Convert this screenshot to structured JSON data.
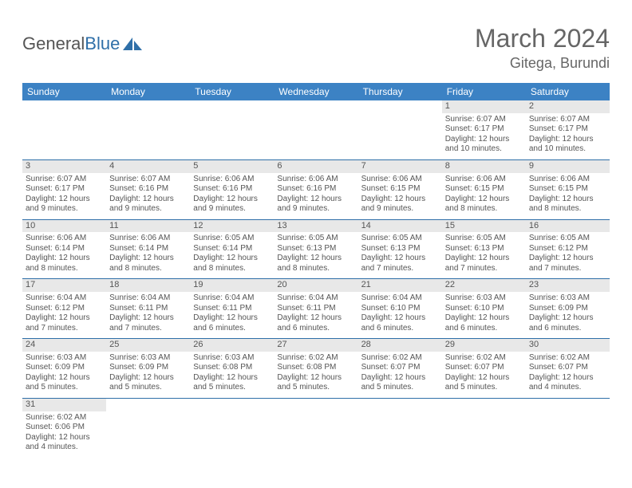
{
  "brand": {
    "part1": "General",
    "part2": "Blue"
  },
  "title": "March 2024",
  "location": "Gitega, Burundi",
  "daysOfWeek": [
    "Sunday",
    "Monday",
    "Tuesday",
    "Wednesday",
    "Thursday",
    "Friday",
    "Saturday"
  ],
  "colors": {
    "header_bg": "#3c82c4",
    "header_text": "#ffffff",
    "row_divider": "#2f6fa8",
    "daynum_bg": "#e8e8e8",
    "text": "#555555",
    "brand_blue": "#2f6fa8"
  },
  "grid": [
    [
      null,
      null,
      null,
      null,
      null,
      {
        "n": "1",
        "sunrise": "Sunrise: 6:07 AM",
        "sunset": "Sunset: 6:17 PM",
        "daylight1": "Daylight: 12 hours",
        "daylight2": "and 10 minutes."
      },
      {
        "n": "2",
        "sunrise": "Sunrise: 6:07 AM",
        "sunset": "Sunset: 6:17 PM",
        "daylight1": "Daylight: 12 hours",
        "daylight2": "and 10 minutes."
      }
    ],
    [
      {
        "n": "3",
        "sunrise": "Sunrise: 6:07 AM",
        "sunset": "Sunset: 6:17 PM",
        "daylight1": "Daylight: 12 hours",
        "daylight2": "and 9 minutes."
      },
      {
        "n": "4",
        "sunrise": "Sunrise: 6:07 AM",
        "sunset": "Sunset: 6:16 PM",
        "daylight1": "Daylight: 12 hours",
        "daylight2": "and 9 minutes."
      },
      {
        "n": "5",
        "sunrise": "Sunrise: 6:06 AM",
        "sunset": "Sunset: 6:16 PM",
        "daylight1": "Daylight: 12 hours",
        "daylight2": "and 9 minutes."
      },
      {
        "n": "6",
        "sunrise": "Sunrise: 6:06 AM",
        "sunset": "Sunset: 6:16 PM",
        "daylight1": "Daylight: 12 hours",
        "daylight2": "and 9 minutes."
      },
      {
        "n": "7",
        "sunrise": "Sunrise: 6:06 AM",
        "sunset": "Sunset: 6:15 PM",
        "daylight1": "Daylight: 12 hours",
        "daylight2": "and 9 minutes."
      },
      {
        "n": "8",
        "sunrise": "Sunrise: 6:06 AM",
        "sunset": "Sunset: 6:15 PM",
        "daylight1": "Daylight: 12 hours",
        "daylight2": "and 8 minutes."
      },
      {
        "n": "9",
        "sunrise": "Sunrise: 6:06 AM",
        "sunset": "Sunset: 6:15 PM",
        "daylight1": "Daylight: 12 hours",
        "daylight2": "and 8 minutes."
      }
    ],
    [
      {
        "n": "10",
        "sunrise": "Sunrise: 6:06 AM",
        "sunset": "Sunset: 6:14 PM",
        "daylight1": "Daylight: 12 hours",
        "daylight2": "and 8 minutes."
      },
      {
        "n": "11",
        "sunrise": "Sunrise: 6:06 AM",
        "sunset": "Sunset: 6:14 PM",
        "daylight1": "Daylight: 12 hours",
        "daylight2": "and 8 minutes."
      },
      {
        "n": "12",
        "sunrise": "Sunrise: 6:05 AM",
        "sunset": "Sunset: 6:14 PM",
        "daylight1": "Daylight: 12 hours",
        "daylight2": "and 8 minutes."
      },
      {
        "n": "13",
        "sunrise": "Sunrise: 6:05 AM",
        "sunset": "Sunset: 6:13 PM",
        "daylight1": "Daylight: 12 hours",
        "daylight2": "and 8 minutes."
      },
      {
        "n": "14",
        "sunrise": "Sunrise: 6:05 AM",
        "sunset": "Sunset: 6:13 PM",
        "daylight1": "Daylight: 12 hours",
        "daylight2": "and 7 minutes."
      },
      {
        "n": "15",
        "sunrise": "Sunrise: 6:05 AM",
        "sunset": "Sunset: 6:13 PM",
        "daylight1": "Daylight: 12 hours",
        "daylight2": "and 7 minutes."
      },
      {
        "n": "16",
        "sunrise": "Sunrise: 6:05 AM",
        "sunset": "Sunset: 6:12 PM",
        "daylight1": "Daylight: 12 hours",
        "daylight2": "and 7 minutes."
      }
    ],
    [
      {
        "n": "17",
        "sunrise": "Sunrise: 6:04 AM",
        "sunset": "Sunset: 6:12 PM",
        "daylight1": "Daylight: 12 hours",
        "daylight2": "and 7 minutes."
      },
      {
        "n": "18",
        "sunrise": "Sunrise: 6:04 AM",
        "sunset": "Sunset: 6:11 PM",
        "daylight1": "Daylight: 12 hours",
        "daylight2": "and 7 minutes."
      },
      {
        "n": "19",
        "sunrise": "Sunrise: 6:04 AM",
        "sunset": "Sunset: 6:11 PM",
        "daylight1": "Daylight: 12 hours",
        "daylight2": "and 6 minutes."
      },
      {
        "n": "20",
        "sunrise": "Sunrise: 6:04 AM",
        "sunset": "Sunset: 6:11 PM",
        "daylight1": "Daylight: 12 hours",
        "daylight2": "and 6 minutes."
      },
      {
        "n": "21",
        "sunrise": "Sunrise: 6:04 AM",
        "sunset": "Sunset: 6:10 PM",
        "daylight1": "Daylight: 12 hours",
        "daylight2": "and 6 minutes."
      },
      {
        "n": "22",
        "sunrise": "Sunrise: 6:03 AM",
        "sunset": "Sunset: 6:10 PM",
        "daylight1": "Daylight: 12 hours",
        "daylight2": "and 6 minutes."
      },
      {
        "n": "23",
        "sunrise": "Sunrise: 6:03 AM",
        "sunset": "Sunset: 6:09 PM",
        "daylight1": "Daylight: 12 hours",
        "daylight2": "and 6 minutes."
      }
    ],
    [
      {
        "n": "24",
        "sunrise": "Sunrise: 6:03 AM",
        "sunset": "Sunset: 6:09 PM",
        "daylight1": "Daylight: 12 hours",
        "daylight2": "and 5 minutes."
      },
      {
        "n": "25",
        "sunrise": "Sunrise: 6:03 AM",
        "sunset": "Sunset: 6:09 PM",
        "daylight1": "Daylight: 12 hours",
        "daylight2": "and 5 minutes."
      },
      {
        "n": "26",
        "sunrise": "Sunrise: 6:03 AM",
        "sunset": "Sunset: 6:08 PM",
        "daylight1": "Daylight: 12 hours",
        "daylight2": "and 5 minutes."
      },
      {
        "n": "27",
        "sunrise": "Sunrise: 6:02 AM",
        "sunset": "Sunset: 6:08 PM",
        "daylight1": "Daylight: 12 hours",
        "daylight2": "and 5 minutes."
      },
      {
        "n": "28",
        "sunrise": "Sunrise: 6:02 AM",
        "sunset": "Sunset: 6:07 PM",
        "daylight1": "Daylight: 12 hours",
        "daylight2": "and 5 minutes."
      },
      {
        "n": "29",
        "sunrise": "Sunrise: 6:02 AM",
        "sunset": "Sunset: 6:07 PM",
        "daylight1": "Daylight: 12 hours",
        "daylight2": "and 5 minutes."
      },
      {
        "n": "30",
        "sunrise": "Sunrise: 6:02 AM",
        "sunset": "Sunset: 6:07 PM",
        "daylight1": "Daylight: 12 hours",
        "daylight2": "and 4 minutes."
      }
    ],
    [
      {
        "n": "31",
        "sunrise": "Sunrise: 6:02 AM",
        "sunset": "Sunset: 6:06 PM",
        "daylight1": "Daylight: 12 hours",
        "daylight2": "and 4 minutes."
      },
      null,
      null,
      null,
      null,
      null,
      null
    ]
  ]
}
